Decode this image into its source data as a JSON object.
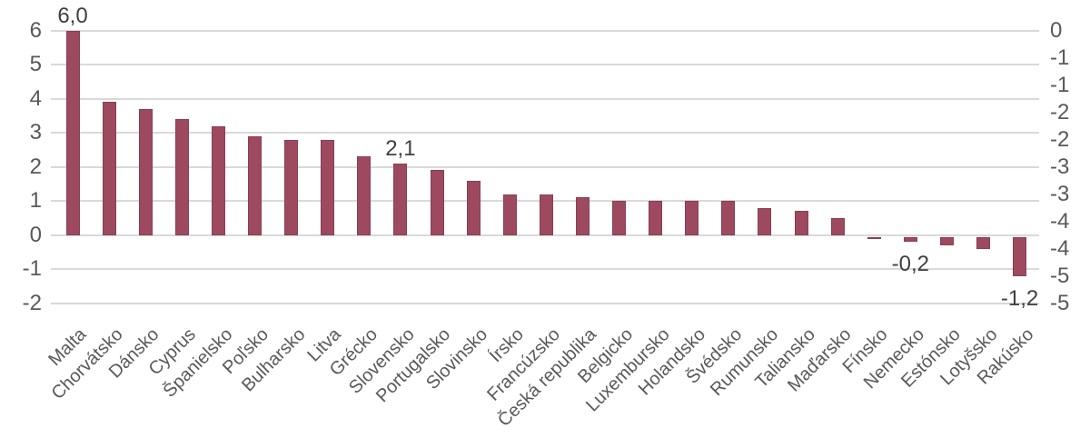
{
  "chart_data": {
    "type": "bar",
    "title": "",
    "xlabel": "",
    "ylabel": "",
    "grid": true,
    "legend": false,
    "categories": [
      "Malta",
      "Chorvátsko",
      "Dánsko",
      "Cyprus",
      "Španielsko",
      "Poľsko",
      "Bulharsko",
      "Litva",
      "Grécko",
      "Slovensko",
      "Portugalsko",
      "Slovinsko",
      "Írsko",
      "Francúzsko",
      "Česká republika",
      "Belgicko",
      "Luxembursko",
      "Holandsko",
      "Švédsko",
      "Rumunsko",
      "Taliansko",
      "Maďarsko",
      "Fínsko",
      "Nemecko",
      "Estónsko",
      "Lotyšsko",
      "Rakúsko"
    ],
    "values": [
      6.0,
      3.9,
      3.7,
      3.4,
      3.2,
      2.9,
      2.8,
      2.8,
      2.3,
      2.1,
      1.9,
      1.6,
      1.2,
      1.2,
      1.1,
      1.0,
      1.0,
      1.0,
      1.0,
      0.8,
      0.7,
      0.5,
      -0.1,
      -0.2,
      -0.3,
      -0.4,
      -1.2
    ],
    "left_axis": {
      "ticks": [
        "6",
        "5",
        "4",
        "3",
        "2",
        "1",
        "0",
        "-1",
        "-2"
      ],
      "range": [
        -2,
        6
      ]
    },
    "right_axis": {
      "ticks": [
        "0",
        "-1",
        "-1",
        "-2",
        "-2",
        "-3",
        "-3",
        "-4",
        "-4",
        "-5",
        "-5"
      ],
      "range": [
        -5,
        0
      ],
      "step": 0.5
    },
    "data_labels": [
      {
        "index": 0,
        "text": "6,0"
      },
      {
        "index": 9,
        "text": "2,1"
      },
      {
        "index": 23,
        "text": "-0,2"
      },
      {
        "index": 26,
        "text": "-1,2"
      }
    ],
    "colors": {
      "bar_fill": "#9D4A60",
      "bar_border": "#8A3E52",
      "gridline": "#D9D9D9",
      "axis_text": "#595959",
      "data_label_text": "#404040"
    }
  }
}
